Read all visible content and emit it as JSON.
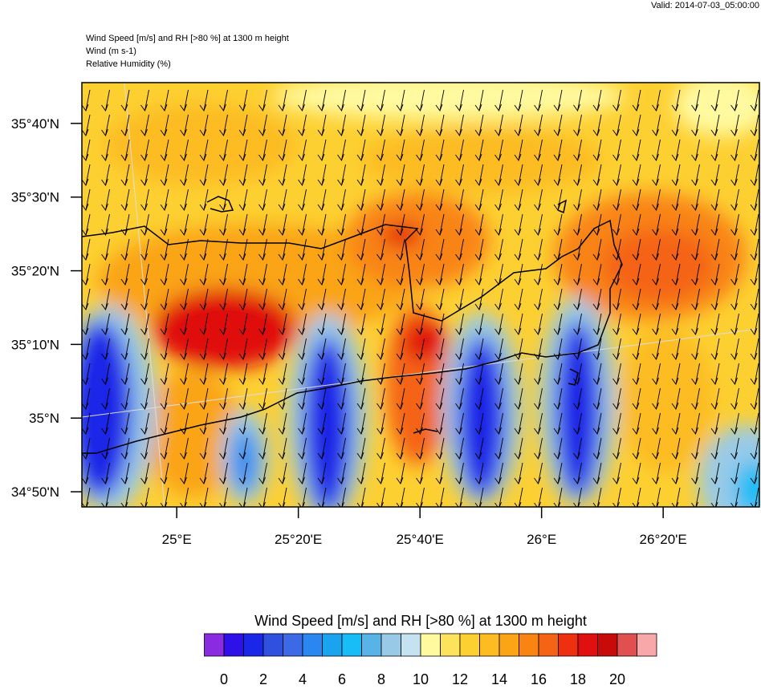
{
  "header": {
    "valid": "Valid: 2014-07-03_05:00:00",
    "lines": [
      "Wind Speed [m/s] and RH [>80 %] at 1300 m height",
      "Wind   (m s-1)",
      "Relative Humidity   (%)"
    ]
  },
  "map": {
    "lon_range": [
      24.74,
      26.597
    ],
    "lat_range": [
      34.799,
      35.759
    ],
    "lon_ticks": [
      {
        "value": 25,
        "label": "25°E"
      },
      {
        "value": 25.3333,
        "label": "25°20'E"
      },
      {
        "value": 25.6667,
        "label": "25°40'E"
      },
      {
        "value": 26,
        "label": "26°E"
      },
      {
        "value": 26.3333,
        "label": "26°20'E"
      }
    ],
    "lat_ticks": [
      {
        "value": 35.6667,
        "label": "35°40'N"
      },
      {
        "value": 35.5,
        "label": "35°30'N"
      },
      {
        "value": 35.3333,
        "label": "35°20'N"
      },
      {
        "value": 35.1667,
        "label": "35°10'N"
      },
      {
        "value": 35,
        "label": "35°N"
      },
      {
        "value": 34.8333,
        "label": "34°50'N"
      }
    ]
  },
  "colorbar": {
    "title": "Wind Speed [m/s] and RH [>80 %] at 1300 m height",
    "colors": [
      "#8a2be2",
      "#2e10e8",
      "#1a26e8",
      "#3050e0",
      "#3c6ae6",
      "#2a86f0",
      "#1aa4f0",
      "#18bcf6",
      "#58b4e6",
      "#98cae8",
      "#c4e2f0",
      "#fffaa0",
      "#fde25c",
      "#fdd032",
      "#fcbc22",
      "#faa416",
      "#f98412",
      "#f46414",
      "#ec3010",
      "#e01010",
      "#c80a0a",
      "#e05050",
      "#f8a8a8"
    ],
    "ticks": [
      0,
      2,
      4,
      6,
      8,
      10,
      12,
      14,
      16,
      18,
      20
    ]
  }
}
